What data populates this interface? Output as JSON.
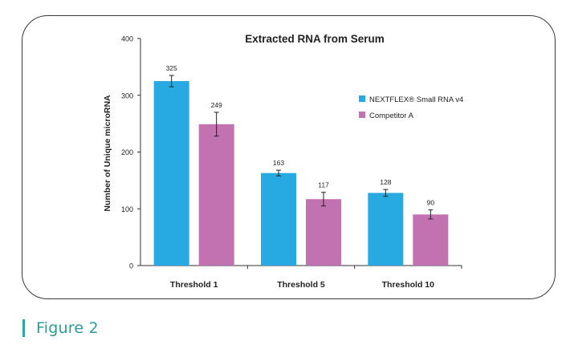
{
  "figure_caption": "Figure 2",
  "chart_data": {
    "type": "bar",
    "title": "Extracted RNA from Serum",
    "ylabel": "Number of Unique microRNA",
    "xlabel": "",
    "ylim": [
      0,
      400
    ],
    "yticks": [
      "0",
      "100",
      "200",
      "300",
      "400"
    ],
    "categories": [
      "Threshold 1",
      "Threshold 5",
      "Threshold 10"
    ],
    "series": [
      {
        "name": "NEXTFLEX® Small RNA v4",
        "color": "#27aae1",
        "values": [
          325,
          163,
          128
        ],
        "labels": [
          "325",
          "163",
          "128"
        ],
        "errors": [
          10,
          5,
          6
        ]
      },
      {
        "name": "Competitor A",
        "color": "#c272b1",
        "values": [
          249,
          117,
          90
        ],
        "labels": [
          "249",
          "117",
          "90"
        ],
        "errors": [
          21,
          12,
          8
        ]
      }
    ],
    "legend_position": "right"
  }
}
